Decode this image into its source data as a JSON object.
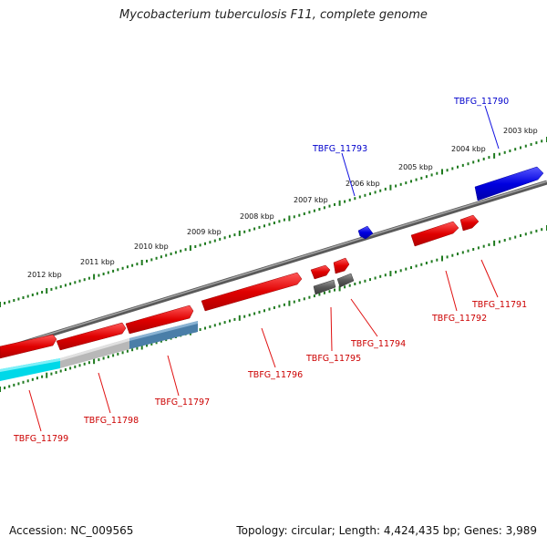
{
  "title": "Mycobacterium tuberculosis F11, complete genome",
  "footer": {
    "accession": "Accession: NC_009565",
    "summary": "Topology: circular; Length: 4,424,435 bp; Genes: 3,989"
  },
  "colors": {
    "backbone": "#7a7a7a",
    "tick": "#1f7a1f",
    "forward_gene": "#e01010",
    "reverse_gene": "#1010e0",
    "label_forward": "#cc0000",
    "label_reverse": "#0000cc",
    "pseudo_gene": "#555555",
    "highlight_cyan": "#00d8e8",
    "highlight_grey": "#b8b8b8",
    "highlight_steel": "#4a7ea8"
  },
  "scale_labels": [
    "2012 kbp",
    "2011 kbp",
    "2010 kbp",
    "2009 kbp",
    "2008 kbp",
    "2007 kbp",
    "2006 kbp",
    "2005 kbp",
    "2004 kbp",
    "2003 kbp"
  ],
  "genes": [
    {
      "id": "TBFG_11790",
      "strand": "reverse",
      "color": "blue"
    },
    {
      "id": "TBFG_11791",
      "strand": "forward",
      "color": "red"
    },
    {
      "id": "TBFG_11792",
      "strand": "forward",
      "color": "red"
    },
    {
      "id": "TBFG_11793",
      "strand": "reverse",
      "color": "blue"
    },
    {
      "id": "TBFG_11794",
      "strand": "forward",
      "color": "red"
    },
    {
      "id": "TBFG_11795",
      "strand": "forward",
      "color": "red"
    },
    {
      "id": "TBFG_11796",
      "strand": "forward",
      "color": "red"
    },
    {
      "id": "TBFG_11797",
      "strand": "forward",
      "color": "red"
    },
    {
      "id": "TBFG_11798",
      "strand": "forward",
      "color": "red"
    },
    {
      "id": "TBFG_11799",
      "strand": "forward",
      "color": "red"
    }
  ]
}
